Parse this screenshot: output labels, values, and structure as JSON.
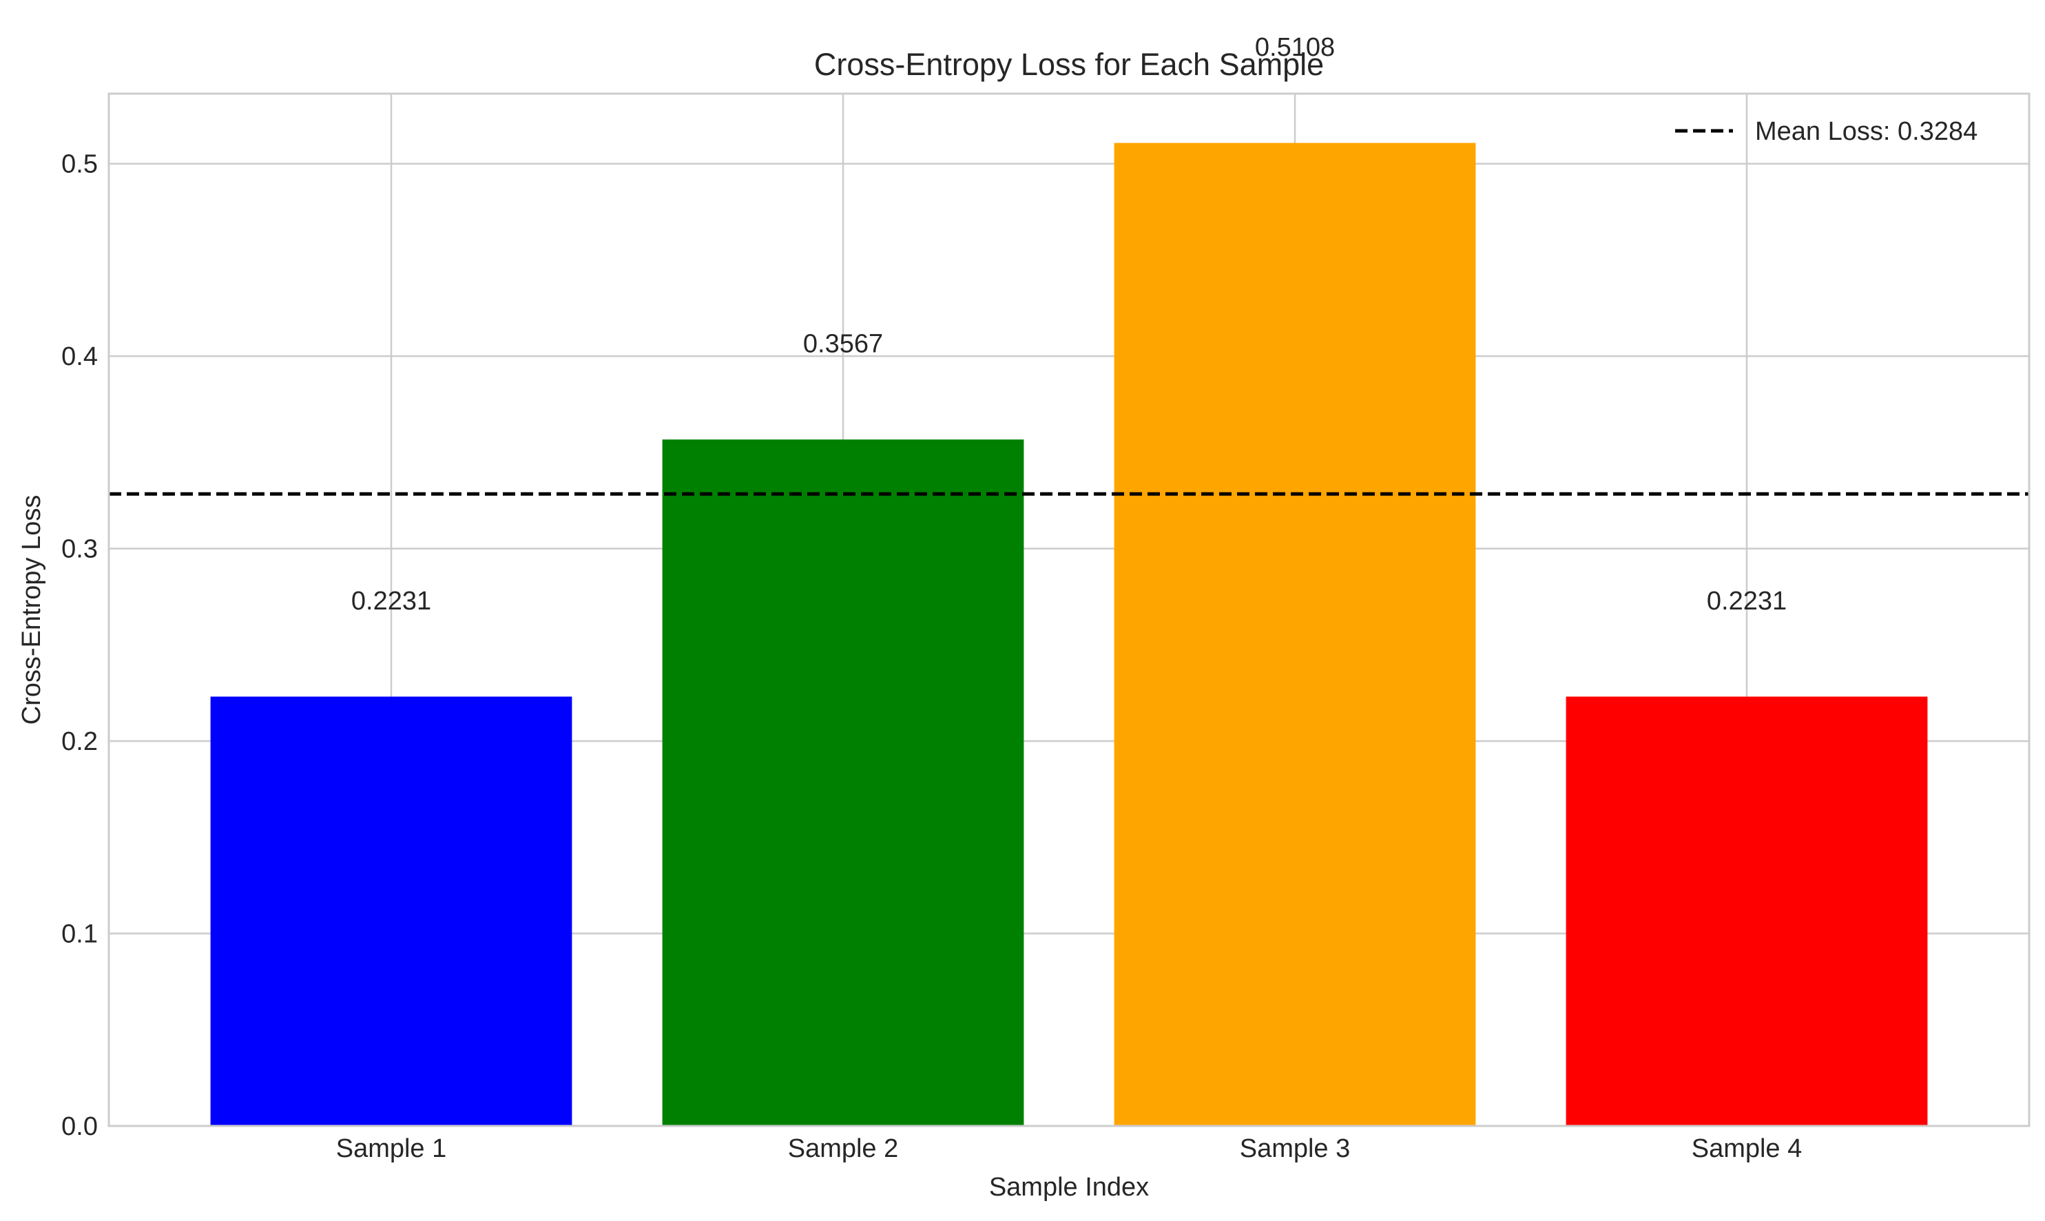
{
  "chart_data": {
    "type": "bar",
    "title": "Cross-Entropy Loss for Each Sample",
    "xlabel": "Sample Index",
    "ylabel": "Cross-Entropy Loss",
    "categories": [
      "Sample 1",
      "Sample 2",
      "Sample 3",
      "Sample 4"
    ],
    "values": [
      0.2231,
      0.3567,
      0.5108,
      0.2231
    ],
    "value_labels": [
      "0.2231",
      "0.3567",
      "0.5108",
      "0.2231"
    ],
    "bar_colors": [
      "#0000ff",
      "#008000",
      "#ffa500",
      "#ff0000"
    ],
    "ylim": [
      0,
      0.5364
    ],
    "yticks": [
      0.0,
      0.1,
      0.2,
      0.3,
      0.4,
      0.5
    ],
    "ytick_labels": [
      "0.0",
      "0.1",
      "0.2",
      "0.3",
      "0.4",
      "0.5"
    ],
    "reference_line": {
      "value": 0.3284,
      "style": "dashed",
      "color": "#000000",
      "label": "Mean Loss: 0.3284"
    },
    "legend": {
      "placement": "top-right",
      "entries": [
        "Mean Loss: 0.3284"
      ]
    },
    "grid": true
  }
}
